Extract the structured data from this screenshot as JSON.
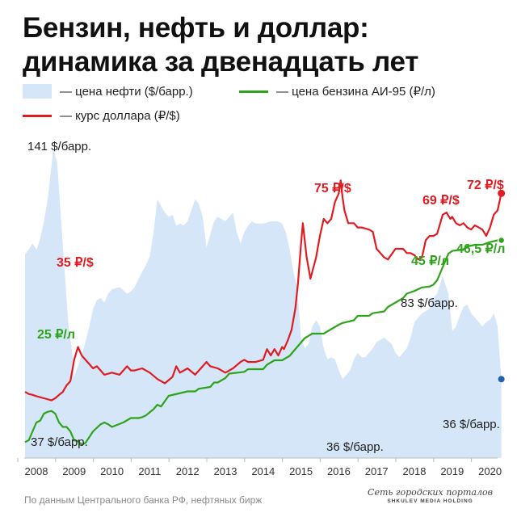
{
  "title_line1": "Бензин, нефть и доллар:",
  "title_line2": "динамика за двенадцать лет",
  "legend": {
    "oil": "— цена нефти ($/барр.)",
    "petrol": "— цена бензина АИ-95 (₽/л)",
    "usd": "— курс доллара (₽/$)"
  },
  "colors": {
    "oil": "#d4e6f7",
    "petrol": "#2fa31b",
    "usd": "#e11b22",
    "end_dot_oil": "#1f63b0"
  },
  "source": "По данным Центрального банка РФ, нефтяных бирж",
  "logo": {
    "line1": "Сеть городских порталов",
    "line2": "SHKULEV MEDIA HOLDING"
  },
  "chart_data": {
    "type": "line",
    "x_ticks": [
      "2008",
      "2009",
      "2010",
      "2011",
      "2012",
      "2013",
      "2014",
      "2015",
      "2016",
      "2017",
      "2018",
      "2019",
      "2020"
    ],
    "xlim": [
      2007.7,
      2020.6
    ],
    "series": [
      {
        "name": "цена нефти ($/барр.)",
        "kind": "area",
        "ylim": [
          0,
          150
        ],
        "x": [
          2007.7,
          2007.8,
          2007.9,
          2008.0,
          2008.1,
          2008.2,
          2008.3,
          2008.45,
          2008.55,
          2008.65,
          2008.75,
          2008.85,
          2008.95,
          2009.0,
          2009.1,
          2009.2,
          2009.3,
          2009.4,
          2009.5,
          2009.6,
          2009.7,
          2009.8,
          2009.9,
          2010.0,
          2010.2,
          2010.4,
          2010.5,
          2010.6,
          2010.8,
          2010.9,
          2011.0,
          2011.1,
          2011.2,
          2011.3,
          2011.4,
          2011.5,
          2011.6,
          2011.7,
          2011.8,
          2011.9,
          2012.0,
          2012.2,
          2012.3,
          2012.4,
          2012.5,
          2012.6,
          2012.7,
          2012.8,
          2012.9,
          2013.0,
          2013.2,
          2013.3,
          2013.4,
          2013.5,
          2013.6,
          2013.7,
          2013.8,
          2014.0,
          2014.2,
          2014.4,
          2014.5,
          2014.6,
          2014.7,
          2014.8,
          2014.9,
          2015.0,
          2015.1,
          2015.2,
          2015.3,
          2015.4,
          2015.5,
          2015.6,
          2015.7,
          2015.8,
          2015.9,
          2016.0,
          2016.1,
          2016.2,
          2016.3,
          2016.4,
          2016.5,
          2016.6,
          2016.7,
          2016.8,
          2016.9,
          2017.0,
          2017.2,
          2017.4,
          2017.5,
          2017.6,
          2017.8,
          2017.9,
          2018.0,
          2018.2,
          2018.4,
          2018.5,
          2018.6,
          2018.75,
          2018.9,
          2019.0,
          2019.1,
          2019.2,
          2019.3,
          2019.4,
          2019.5,
          2019.6,
          2019.7,
          2019.8,
          2019.9,
          2020.0,
          2020.1,
          2020.2,
          2020.3
        ],
        "values": [
          93,
          95,
          98,
          95,
          100,
          108,
          118,
          141,
          135,
          110,
          85,
          60,
          48,
          37,
          42,
          47,
          53,
          60,
          68,
          72,
          73,
          71,
          75,
          77,
          78,
          75,
          76,
          78,
          85,
          88,
          92,
          103,
          118,
          115,
          112,
          110,
          111,
          106,
          107,
          106,
          108,
          118,
          116,
          110,
          96,
          102,
          108,
          110,
          109,
          108,
          112,
          103,
          98,
          103,
          106,
          108,
          107,
          107,
          108,
          108,
          107,
          103,
          95,
          85,
          78,
          55,
          50,
          52,
          60,
          63,
          60,
          50,
          45,
          46,
          45,
          40,
          36,
          38,
          40,
          45,
          48,
          46,
          46,
          48,
          50,
          53,
          55,
          52,
          48,
          46,
          50,
          55,
          62,
          66,
          68,
          73,
          75,
          83,
          75,
          58,
          60,
          65,
          69,
          70,
          66,
          64,
          62,
          60,
          62,
          63,
          66,
          60,
          36
        ]
      },
      {
        "name": "цена бензина АИ-95 (₽/л)",
        "kind": "line",
        "ylim": [
          20,
          57
        ],
        "x": [
          2007.7,
          2007.8,
          2007.9,
          2008.0,
          2008.1,
          2008.2,
          2008.3,
          2008.4,
          2008.5,
          2008.6,
          2008.7,
          2008.8,
          2008.9,
          2009.0,
          2009.1,
          2009.2,
          2009.3,
          2009.5,
          2009.7,
          2009.8,
          2009.9,
          2010.0,
          2010.3,
          2010.5,
          2010.7,
          2010.8,
          2010.9,
          2011.1,
          2011.2,
          2011.3,
          2011.5,
          2012.0,
          2012.2,
          2012.3,
          2012.6,
          2012.7,
          2012.8,
          2013.0,
          2013.1,
          2013.5,
          2013.6,
          2013.8,
          2014.0,
          2014.1,
          2014.3,
          2014.5,
          2014.7,
          2014.8,
          2015.0,
          2015.1,
          2015.3,
          2015.5,
          2015.6,
          2015.8,
          2016.0,
          2016.1,
          2016.4,
          2016.5,
          2016.8,
          2016.9,
          2017.2,
          2017.3,
          2017.5,
          2017.7,
          2017.8,
          2018.0,
          2018.1,
          2018.2,
          2018.4,
          2018.5,
          2018.6,
          2018.7,
          2018.8,
          2018.9,
          2019.0,
          2019.3,
          2019.4,
          2019.6,
          2019.8,
          2020.0,
          2020.2,
          2020.3
        ],
        "values": [
          21.8,
          22.0,
          23.0,
          24.0,
          24.2,
          25.0,
          25.2,
          25.3,
          25.0,
          24.0,
          23.5,
          23.5,
          23.0,
          22.0,
          21.9,
          21.5,
          21.7,
          23.0,
          23.8,
          24.0,
          23.8,
          23.5,
          24.0,
          24.5,
          24.5,
          24.6,
          24.8,
          25.5,
          26.0,
          25.8,
          27.0,
          27.5,
          27.5,
          27.8,
          28.0,
          28.5,
          28.5,
          29.0,
          29.5,
          29.7,
          30.0,
          30.0,
          30.0,
          30.5,
          31.0,
          31.0,
          31.5,
          32.0,
          33.0,
          33.5,
          34.0,
          34.0,
          34.0,
          34.5,
          35.0,
          35.2,
          35.5,
          36.0,
          36.0,
          36.3,
          36.5,
          37.0,
          37.5,
          38.0,
          38.5,
          38.8,
          39.0,
          39.2,
          39.3,
          39.5,
          40.0,
          41.0,
          42.0,
          43.0,
          43.3,
          43.5,
          43.8,
          44.0,
          44.0,
          44.3,
          44.5,
          44.5
        ]
      },
      {
        "name": "курс доллара (₽/$)",
        "kind": "line",
        "ylim": [
          10,
          87
        ],
        "x": [
          2007.7,
          2007.8,
          2007.9,
          2008.0,
          2008.2,
          2008.4,
          2008.5,
          2008.6,
          2008.7,
          2008.8,
          2008.9,
          2009.0,
          2009.1,
          2009.2,
          2009.3,
          2009.5,
          2009.6,
          2009.8,
          2010.0,
          2010.2,
          2010.4,
          2010.5,
          2010.6,
          2010.8,
          2011.0,
          2011.2,
          2011.4,
          2011.6,
          2011.7,
          2011.8,
          2012.0,
          2012.2,
          2012.4,
          2012.5,
          2012.6,
          2012.8,
          2013.0,
          2013.2,
          2013.4,
          2013.5,
          2013.6,
          2013.8,
          2014.0,
          2014.1,
          2014.2,
          2014.3,
          2014.4,
          2014.5,
          2014.55,
          2014.65,
          2014.75,
          2014.85,
          2014.92,
          2015.0,
          2015.05,
          2015.15,
          2015.25,
          2015.4,
          2015.5,
          2015.6,
          2015.7,
          2015.8,
          2015.9,
          2016.0,
          2016.05,
          2016.1,
          2016.15,
          2016.25,
          2016.4,
          2016.5,
          2016.6,
          2016.8,
          2016.9,
          2017.0,
          2017.1,
          2017.2,
          2017.3,
          2017.5,
          2017.7,
          2017.8,
          2017.9,
          2018.0,
          2018.1,
          2018.2,
          2018.3,
          2018.4,
          2018.5,
          2018.6,
          2018.75,
          2018.85,
          2018.95,
          2019.0,
          2019.1,
          2019.2,
          2019.3,
          2019.4,
          2019.5,
          2019.6,
          2019.7,
          2019.8,
          2019.9,
          2020.0,
          2020.1,
          2020.2,
          2020.3
        ],
        "values": [
          25.5,
          25.0,
          24.8,
          24.5,
          24.0,
          23.5,
          24.0,
          24.8,
          25.5,
          27.0,
          28.0,
          33.0,
          36.0,
          34.0,
          33.0,
          31.0,
          31.5,
          29.5,
          30.0,
          29.5,
          31.5,
          30.5,
          30.5,
          31.0,
          30.0,
          28.5,
          27.5,
          29.0,
          31.5,
          30.0,
          31.0,
          29.5,
          31.5,
          32.5,
          31.5,
          31.0,
          30.0,
          31.0,
          32.5,
          33.0,
          32.5,
          32.5,
          33.0,
          35.5,
          34.0,
          35.5,
          34.0,
          36.0,
          35.5,
          37.5,
          40.0,
          45.0,
          51.0,
          60.0,
          65.0,
          57.0,
          52.0,
          57.0,
          62.0,
          66.0,
          65.0,
          66.0,
          70.0,
          72.0,
          75.0,
          71.0,
          68.0,
          65.0,
          65.0,
          64.0,
          64.0,
          63.5,
          63.0,
          59.0,
          58.0,
          57.0,
          56.5,
          59.0,
          59.0,
          58.0,
          58.0,
          57.5,
          56.5,
          57.0,
          61.0,
          62.0,
          62.0,
          62.5,
          67.0,
          67.5,
          66.0,
          66.5,
          65.0,
          64.5,
          65.0,
          64.0,
          63.5,
          64.5,
          64.0,
          63.5,
          62.0,
          64.0,
          67.0,
          68.0,
          72.0
        ]
      }
    ],
    "annotations": [
      {
        "series": 0,
        "text": "141 $/барр."
      },
      {
        "series": 0,
        "text": "37 $/барр."
      },
      {
        "series": 0,
        "text": "36 $/барр."
      },
      {
        "series": 0,
        "text": "83 $/барр."
      },
      {
        "series": 0,
        "text": "36 $/барр."
      },
      {
        "series": 2,
        "text": "35 ₽/$"
      },
      {
        "series": 2,
        "text": "75 ₽/$"
      },
      {
        "series": 2,
        "text": "69 ₽/$"
      },
      {
        "series": 2,
        "text": "72 ₽/$"
      },
      {
        "series": 1,
        "text": "25 ₽/л"
      },
      {
        "series": 1,
        "text": "45 ₽/л"
      },
      {
        "series": 1,
        "text": "46,5 ₽/л"
      }
    ]
  }
}
